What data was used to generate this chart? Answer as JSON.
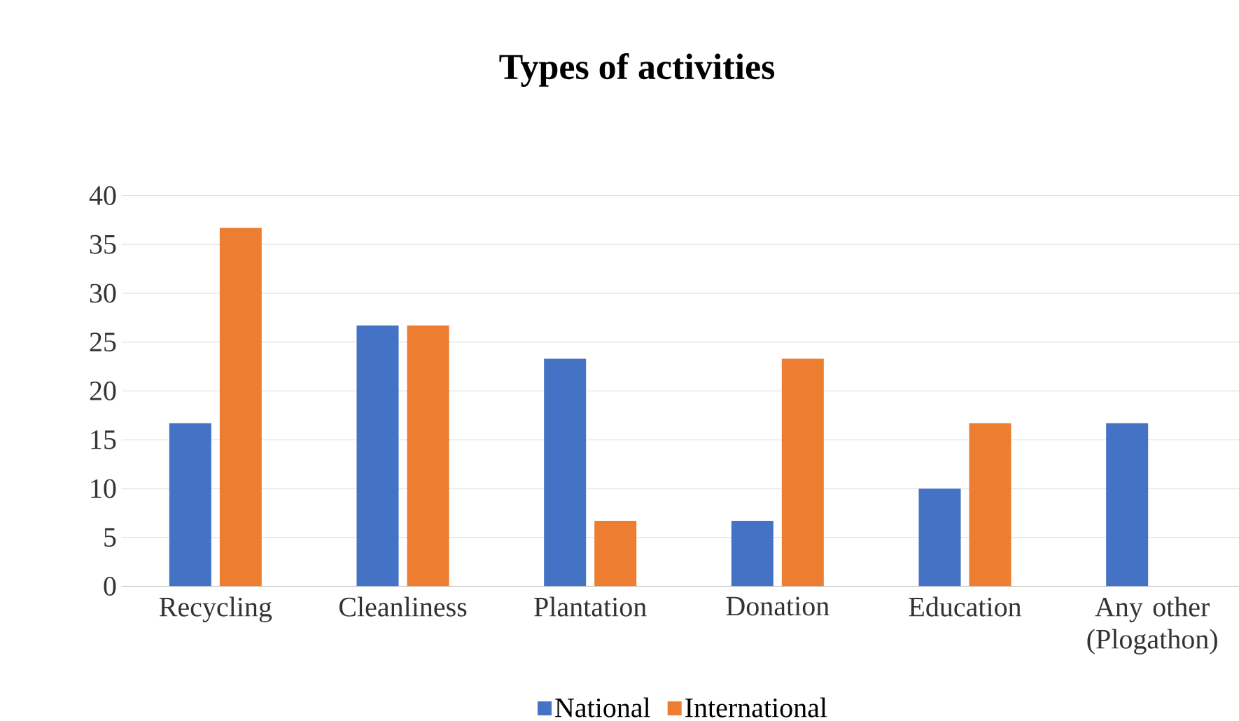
{
  "chart_data": {
    "type": "bar",
    "title": "Types of activities",
    "categories": [
      "Recycling",
      "Cleanliness",
      "Plantation",
      "Donation",
      "Education",
      "Any other (Plogathon)"
    ],
    "series": [
      {
        "name": "National",
        "color": "#4472c4",
        "values": [
          16.7,
          26.7,
          23.3,
          6.7,
          10,
          16.7
        ]
      },
      {
        "name": "International",
        "color": "#ed7d31",
        "values": [
          36.7,
          26.7,
          6.7,
          23.3,
          16.7,
          null
        ]
      }
    ],
    "ylim": [
      0,
      40
    ],
    "yticks": [
      0,
      5,
      10,
      15,
      20,
      25,
      30,
      35,
      40
    ],
    "grid": "y",
    "legend": "bottom"
  }
}
